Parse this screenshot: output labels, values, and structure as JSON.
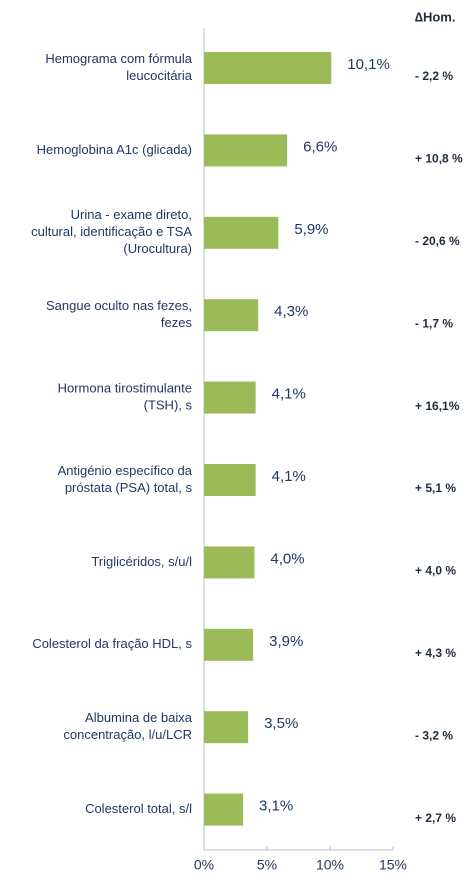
{
  "chart_data": {
    "type": "bar",
    "orientation": "horizontal",
    "categories": [
      [
        "Hemograma com fórmula",
        "leucocitária"
      ],
      [
        "Hemoglobina A1c (glicada)"
      ],
      [
        "Urina - exame direto,",
        "cultural, identificação e TSA",
        "(Urocultura)"
      ],
      [
        "Sangue oculto nas fezes,",
        "fezes"
      ],
      [
        "Hormona tirostimulante",
        "(TSH), s"
      ],
      [
        "Antigénio específico da",
        "próstata (PSA) total, s"
      ],
      [
        "Triglicéridos, s/u/l"
      ],
      [
        "Colesterol da fração HDL, s"
      ],
      [
        "Albumina de baixa",
        "concentração, l/u/LCR"
      ],
      [
        "Colesterol total, s/l"
      ]
    ],
    "values": [
      10.1,
      6.6,
      5.9,
      4.3,
      4.1,
      4.1,
      4.0,
      3.9,
      3.5,
      3.1
    ],
    "value_labels": [
      "10,1%",
      "6,6%",
      "5,9%",
      "4,3%",
      "4,1%",
      "4,1%",
      "4,0%",
      "3,9%",
      "3,5%",
      "3,1%"
    ],
    "color": "#9bbb59",
    "xlim": [
      0,
      15
    ],
    "xticks": [
      {
        "value": 0,
        "label": "0%"
      },
      {
        "value": 5,
        "label": "5%"
      },
      {
        "value": 10,
        "label": "10%"
      },
      {
        "value": 15,
        "label": "15%"
      }
    ],
    "delta_header": "∆Hom.",
    "delta_labels": [
      "- 2,2 %",
      "+ 10,8 %",
      "- 20,6 %",
      "- 1,7 %",
      "+ 16,1%",
      "+ 5,1 %",
      "+ 4,0 %",
      "+ 4,3 %",
      "- 3,2 %",
      "+ 2,7 %"
    ]
  }
}
